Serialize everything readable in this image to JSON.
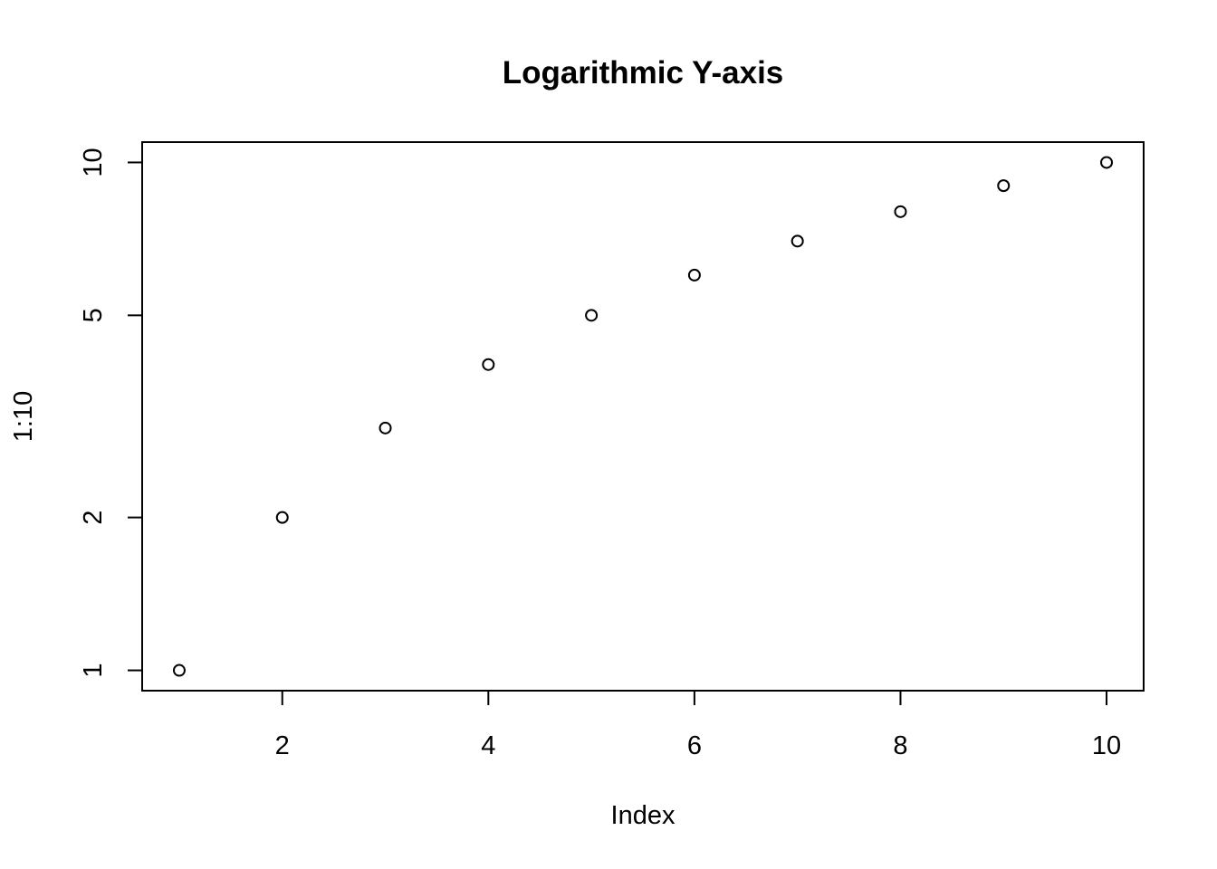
{
  "chart_data": {
    "type": "scatter",
    "title": "Logarithmic Y-axis",
    "xlabel": "Index",
    "ylabel": "1:10",
    "x": [
      1,
      2,
      3,
      4,
      5,
      6,
      7,
      8,
      9,
      10
    ],
    "y": [
      1,
      2,
      3,
      4,
      5,
      6,
      7,
      8,
      9,
      10
    ],
    "xlim": [
      0.64,
      10.36
    ],
    "ylim": [
      0.9120108393559098,
      10.964781961431852
    ],
    "y_scale": "log",
    "x_ticks": [
      2,
      4,
      6,
      8,
      10
    ],
    "x_tick_labels": [
      "2",
      "4",
      "6",
      "8",
      "10"
    ],
    "y_ticks": [
      1,
      2,
      5,
      10
    ],
    "y_tick_labels": [
      "1",
      "2",
      "5",
      "10"
    ],
    "marker": "open-circle",
    "grid": false,
    "legend": "none"
  }
}
